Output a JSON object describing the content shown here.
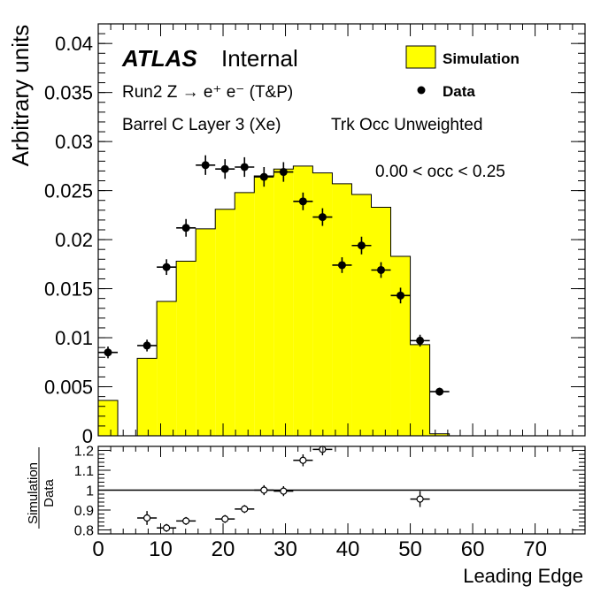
{
  "chart_data": [
    {
      "type": "bar",
      "xlabel": "",
      "ylabel": "Arbitrary units",
      "xlim": [
        0,
        78
      ],
      "ylim": [
        0,
        0.042
      ],
      "yticks": [
        0,
        0.005,
        0.01,
        0.015,
        0.02,
        0.025,
        0.03,
        0.035,
        0.04
      ],
      "ytick_labels": [
        "0",
        "0.005",
        "0.01",
        "0.015",
        "0.02",
        "0.025",
        "0.03",
        "0.035",
        "0.04"
      ],
      "annotations": {
        "atlas": "ATLAS",
        "internal": "Internal",
        "line1": "Run2 Z → e⁺ e⁻ (T&P)",
        "line2": "Barrel C Layer 3 (Xe)",
        "line3": "Trk Occ Unweighted",
        "line4": "0.00 < occ < 0.25"
      },
      "legend": {
        "placement": "top-right",
        "entries": [
          "Simulation",
          "Data"
        ]
      },
      "series": [
        {
          "name": "Simulation",
          "style": "histogram",
          "color": "#ffff00",
          "bin_edges": [
            0,
            3.125,
            6.25,
            9.375,
            12.5,
            15.625,
            18.75,
            21.875,
            25,
            28.125,
            31.25,
            34.375,
            37.5,
            40.625,
            43.75,
            46.875,
            50,
            53.125,
            56.25
          ],
          "values": [
            0.0036,
            0,
            0.0079,
            0.0137,
            0.0178,
            0.0211,
            0.0231,
            0.0248,
            0.0265,
            0.0272,
            0.0275,
            0.0268,
            0.0257,
            0.0246,
            0.0233,
            0.0183,
            0.0093,
            0.0002
          ]
        },
        {
          "name": "Data",
          "style": "points",
          "color": "#000000",
          "x": [
            1.5625,
            7.8125,
            10.9375,
            14.0625,
            17.1875,
            20.3125,
            23.4375,
            26.5625,
            29.6875,
            32.8125,
            35.9375,
            39.0625,
            42.1875,
            45.3125,
            48.4375,
            51.5625,
            54.6875
          ],
          "y": [
            0.0085,
            0.0092,
            0.0172,
            0.0212,
            0.0276,
            0.0272,
            0.0274,
            0.0264,
            0.0269,
            0.0239,
            0.0223,
            0.0174,
            0.0194,
            0.0169,
            0.0143,
            0.0097,
            0.0045
          ],
          "yerr": [
            0.0006,
            0.0006,
            0.0008,
            0.0009,
            0.001,
            0.001,
            0.001,
            0.001,
            0.001,
            0.0009,
            0.0009,
            0.0008,
            0.0009,
            0.0008,
            0.0008,
            0.0006,
            0.0004
          ]
        }
      ]
    },
    {
      "type": "scatter",
      "xlabel": "Leading Edge",
      "ylabel": "Simulation / Data",
      "ylabel_top": "Simulation",
      "ylabel_bottom": "Data",
      "xlim": [
        0,
        78
      ],
      "ylim": [
        0.78,
        1.22
      ],
      "xticks": [
        0,
        10,
        20,
        30,
        40,
        50,
        60,
        70
      ],
      "xtick_labels": [
        "0",
        "10",
        "20",
        "30",
        "40",
        "50",
        "60",
        "70"
      ],
      "yticks": [
        0.8,
        0.9,
        1.0,
        1.1,
        1.2
      ],
      "ytick_labels": [
        "0.8",
        "0.9",
        "1",
        "1.1",
        "1.2"
      ],
      "reference_line": 1.0,
      "series": [
        {
          "name": "",
          "x": [
            7.8125,
            10.9375,
            14.0625,
            20.3125,
            23.4375,
            26.5625,
            29.6875,
            32.8125,
            35.9375,
            51.5625
          ],
          "y": [
            0.86,
            0.81,
            0.845,
            0.855,
            0.905,
            1.0,
            0.995,
            1.15,
            1.205,
            0.955
          ],
          "yerr": [
            0.035,
            0.02,
            0.02,
            0.02,
            0.02,
            0.025,
            0.025,
            0.03,
            0.03,
            0.04
          ]
        }
      ]
    }
  ]
}
